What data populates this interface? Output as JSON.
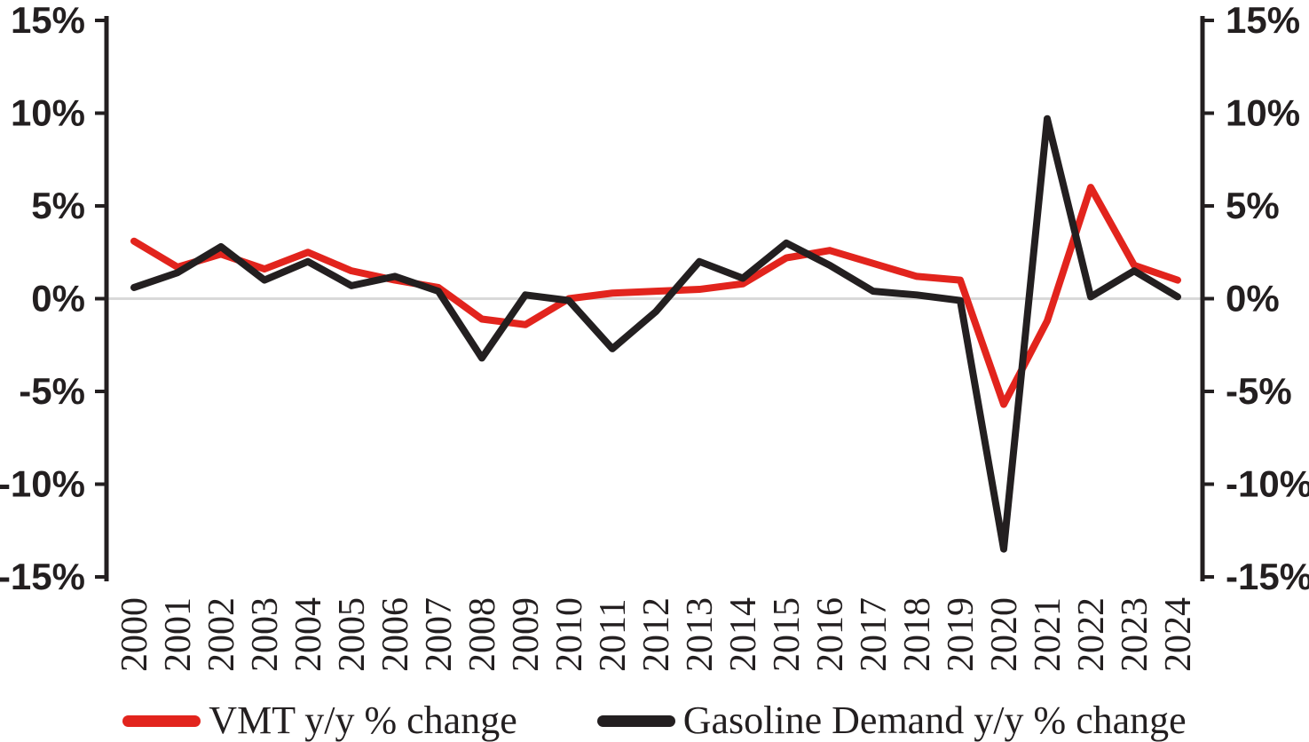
{
  "page": {
    "background": "#ffffff"
  },
  "chart_data": {
    "type": "line",
    "title": "",
    "xlabel": "",
    "ylabel": "",
    "x": [
      2000,
      2001,
      2002,
      2003,
      2004,
      2005,
      2006,
      2007,
      2008,
      2009,
      2010,
      2011,
      2012,
      2013,
      2014,
      2015,
      2016,
      2017,
      2018,
      2019,
      2020,
      2021,
      2022,
      2023,
      2024
    ],
    "series": [
      {
        "key": "vmt",
        "name": "VMT y/y % change",
        "color": "#e2241d",
        "values": [
          3.1,
          1.7,
          2.4,
          1.6,
          2.5,
          1.5,
          1.0,
          0.6,
          -1.1,
          -1.4,
          0.0,
          0.3,
          0.4,
          0.5,
          0.8,
          2.2,
          2.6,
          1.9,
          1.2,
          1.0,
          -5.7,
          -1.2,
          6.0,
          1.8,
          1.0
        ]
      },
      {
        "key": "gasoline",
        "name": "Gasoline Demand y/y % change",
        "color": "#231f20",
        "values": [
          0.6,
          1.4,
          2.8,
          1.0,
          2.0,
          0.7,
          1.2,
          0.4,
          -3.2,
          0.2,
          -0.1,
          -2.7,
          -0.7,
          2.0,
          1.1,
          3.0,
          1.8,
          0.4,
          0.2,
          -0.1,
          -13.5,
          9.7,
          0.1,
          1.5,
          0.1
        ]
      }
    ],
    "ylim": [
      -15,
      15
    ],
    "yticks": [
      15,
      10,
      5,
      0,
      -5,
      -10,
      -15
    ],
    "ytick_labels": [
      "15%",
      "10%",
      "5%",
      "0%",
      "-5%",
      "-10%",
      "-15%"
    ],
    "y_axis_sides": [
      "left",
      "right"
    ],
    "grid": "zero-line-only",
    "zero_line_color": "#d9d9d9",
    "axis_color": "#231f20",
    "legend_position": "bottom"
  }
}
